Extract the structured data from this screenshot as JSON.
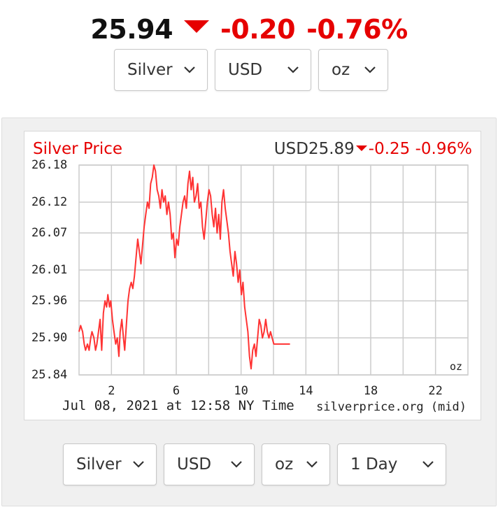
{
  "header": {
    "price": "25.94",
    "change": "-0.20",
    "change_pct": "-0.76%",
    "down_icon": "triangle-down-icon",
    "accent_color": "#e60000"
  },
  "top_selects": [
    {
      "value": "Silver"
    },
    {
      "value": "USD"
    },
    {
      "value": "oz"
    }
  ],
  "bottom_selects": [
    {
      "value": "Silver"
    },
    {
      "value": "USD"
    },
    {
      "value": "oz"
    },
    {
      "value": "1 Day"
    }
  ],
  "chart_data": {
    "type": "line",
    "title": "Silver Price",
    "summary_currency_price": "USD25.89",
    "summary_change": "-0.25",
    "summary_change_pct": "-0.96%",
    "unit_label": "oz",
    "footer_left": "Jul 08, 2021 at 12:58 NY Time",
    "footer_right": "silverprice.org (mid)",
    "xlim": [
      0,
      24
    ],
    "ylim": [
      25.84,
      26.18
    ],
    "x_ticks": [
      "2",
      "6",
      "10",
      "14",
      "18",
      "22"
    ],
    "y_ticks": [
      "26.18",
      "26.12",
      "26.07",
      "26.01",
      "25.96",
      "25.90",
      "25.84"
    ],
    "grid": true,
    "line_color": "#ff3333",
    "series": [
      {
        "x": [
          0.0,
          0.1,
          0.22,
          0.32,
          0.4,
          0.52,
          0.62,
          0.72,
          0.8,
          0.92,
          1.02,
          1.1,
          1.2,
          1.3,
          1.4,
          1.5,
          1.6,
          1.7,
          1.78,
          1.88,
          1.96,
          2.06,
          2.16,
          2.26,
          2.36,
          2.46,
          2.54,
          2.64,
          2.74,
          2.82,
          2.92,
          3.02,
          3.12,
          3.22,
          3.32,
          3.42,
          3.52,
          3.62,
          3.72,
          3.82,
          3.92,
          4.02,
          4.12,
          4.22,
          4.32,
          4.42,
          4.52,
          4.62,
          4.72,
          4.82,
          4.92,
          5.02,
          5.12,
          5.22,
          5.32,
          5.42,
          5.52,
          5.62,
          5.72,
          5.82,
          5.92,
          6.02,
          6.12,
          6.22,
          6.32,
          6.42,
          6.52,
          6.62,
          6.72,
          6.82,
          6.92,
          7.02,
          7.12,
          7.22,
          7.32,
          7.42,
          7.52,
          7.62,
          7.72,
          7.82,
          7.92,
          8.02,
          8.12,
          8.22,
          8.32,
          8.42,
          8.52,
          8.62,
          8.72,
          8.82,
          8.92,
          9.02,
          9.12,
          9.22,
          9.32,
          9.42,
          9.52,
          9.62,
          9.72,
          9.82,
          9.92,
          10.02,
          10.12,
          10.22,
          10.32,
          10.42,
          10.52,
          10.62,
          10.72,
          10.82,
          10.92,
          11.02,
          11.12,
          11.22,
          11.32,
          11.42,
          11.52,
          11.62,
          11.72,
          11.82,
          11.92,
          12.02,
          12.12,
          12.22,
          12.32,
          12.42,
          12.52,
          12.62,
          12.72,
          12.82,
          12.92,
          13.02
        ],
        "y": [
          25.91,
          25.92,
          25.91,
          25.89,
          25.88,
          25.89,
          25.88,
          25.9,
          25.91,
          25.9,
          25.88,
          25.89,
          25.91,
          25.93,
          25.88,
          25.94,
          25.96,
          25.95,
          25.97,
          25.95,
          25.96,
          25.93,
          25.91,
          25.89,
          25.9,
          25.87,
          25.91,
          25.93,
          25.9,
          25.88,
          25.92,
          25.96,
          25.98,
          25.99,
          25.98,
          26.0,
          26.03,
          26.06,
          26.04,
          26.02,
          26.05,
          26.08,
          26.1,
          26.12,
          26.11,
          26.15,
          26.16,
          26.18,
          26.17,
          26.14,
          26.13,
          26.11,
          26.14,
          26.12,
          26.13,
          26.1,
          26.12,
          26.1,
          26.06,
          26.07,
          26.03,
          26.06,
          26.05,
          26.08,
          26.1,
          26.12,
          26.13,
          26.11,
          26.15,
          26.17,
          26.14,
          26.16,
          26.12,
          26.13,
          26.15,
          26.11,
          26.12,
          26.08,
          26.06,
          26.09,
          26.12,
          26.14,
          26.13,
          26.1,
          26.08,
          26.11,
          26.07,
          26.1,
          26.06,
          26.12,
          26.14,
          26.11,
          26.09,
          26.07,
          26.04,
          26.02,
          26.0,
          26.04,
          26.02,
          25.99,
          26.01,
          25.97,
          25.99,
          25.95,
          25.93,
          25.91,
          25.87,
          25.85,
          25.88,
          25.89,
          25.87,
          25.9,
          25.93,
          25.92,
          25.9,
          25.91,
          25.93,
          25.91,
          25.9,
          25.91,
          25.9,
          25.89,
          25.89,
          25.89,
          25.89,
          25.89,
          25.89,
          25.89,
          25.89,
          25.89,
          25.89,
          25.89
        ]
      }
    ]
  }
}
